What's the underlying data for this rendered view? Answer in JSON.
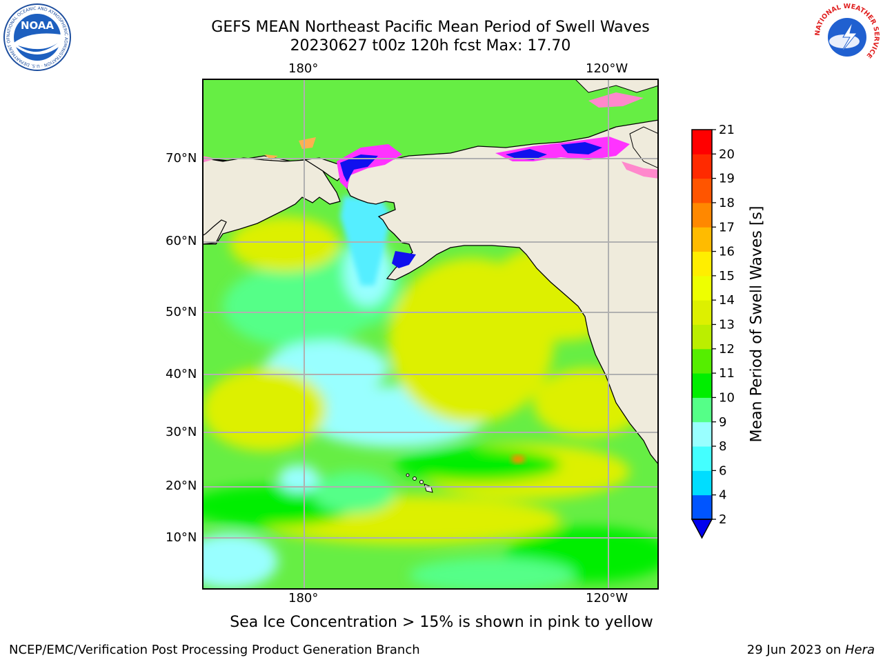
{
  "header": {
    "title_line1": "GEFS MEAN Northeast Pacific Mean Period of Swell Waves",
    "title_line2": "20230627 t00z 120h fcst   Max: 17.70"
  },
  "logos": {
    "noaa_text": "NOAA",
    "noaa_ring_text": "NATIONAL OCEANIC AND ATMOSPHERIC ADMINISTRATION · U.S. DEPARTMENT OF COMMERCE",
    "nws_ring_text": "NATIONAL WEATHER SERVICE"
  },
  "map": {
    "lon_labels": [
      "180°",
      "120°W"
    ],
    "lat_labels": [
      "70°N",
      "60°N",
      "50°N",
      "40°N",
      "30°N",
      "20°N",
      "10°N"
    ],
    "colors": {
      "land": "#efebdc",
      "grid": "#b0b0b0",
      "coast": "#000000",
      "ice_magenta": "#ff33ff",
      "ice_pink": "#ff88cc",
      "ice_orange": "#ffb050"
    }
  },
  "colorbar": {
    "title": "Mean Period of Swell Waves [s]",
    "ticks": [
      "2",
      "4",
      "6",
      "8",
      "9",
      "10",
      "11",
      "12",
      "13",
      "14",
      "15",
      "16",
      "17",
      "18",
      "19",
      "20",
      "21"
    ],
    "colors": [
      "#0055ff",
      "#00ddff",
      "#44ffff",
      "#99ffff",
      "#55ff88",
      "#00ee00",
      "#55ee00",
      "#bbee00",
      "#ddf000",
      "#eeff00",
      "#ffee00",
      "#ffbb00",
      "#ff8800",
      "#ff5500",
      "#ff2a00",
      "#ff0000"
    ],
    "extend_color": "#0000ee"
  },
  "footer": {
    "ice_note": "Sea Ice Concentration > 15% is shown in pink to yellow",
    "credit_left": "NCEP/EMC/Verification Post Processing Product Generation Branch",
    "credit_date": "29 Jun 2023 on",
    "credit_host": "Hera"
  }
}
